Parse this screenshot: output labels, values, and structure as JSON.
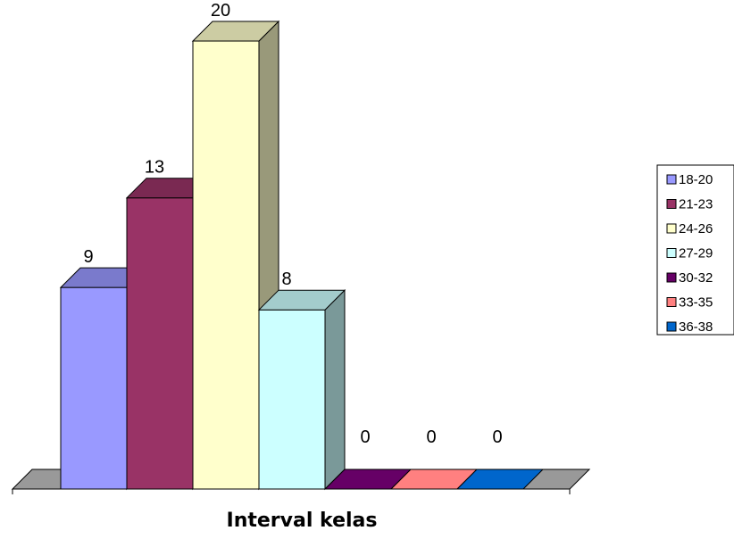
{
  "chart_data": {
    "type": "bar",
    "style": "3d-clustered-column",
    "title": "",
    "xlabel": "Interval kelas",
    "ylabel": "",
    "ylim": [
      0,
      20
    ],
    "grid": false,
    "legend_position": "right",
    "series": [
      {
        "name": "18-20",
        "value": 9,
        "color": "#9999ff"
      },
      {
        "name": "21-23",
        "value": 13,
        "color": "#993366"
      },
      {
        "name": "24-26",
        "value": 20,
        "color": "#ffffcc"
      },
      {
        "name": "27-29",
        "value": 8,
        "color": "#ccffff"
      },
      {
        "name": "30-32",
        "value": 0,
        "color": "#660066"
      },
      {
        "name": "33-35",
        "value": 0,
        "color": "#ff8080"
      },
      {
        "name": "36-38",
        "value": 0,
        "color": "#0066cc"
      }
    ],
    "floor_color": "#999999"
  }
}
